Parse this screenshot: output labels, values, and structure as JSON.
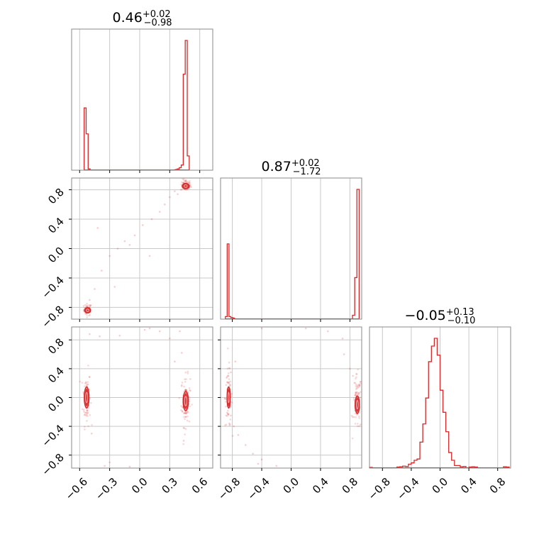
{
  "chart_data": {
    "type": "corner",
    "color": "#d62728",
    "params": [
      {
        "median": "0.46",
        "plus": "+0.02",
        "minus": "−0.98",
        "ticks": [
          -0.6,
          -0.3,
          0.0,
          0.3,
          0.6
        ],
        "tick_labels": [
          "−0.6",
          "−0.3",
          "0.0",
          "0.3",
          "0.6"
        ],
        "range": [
          -0.68,
          0.73
        ]
      },
      {
        "median": "0.87",
        "plus": "+0.02",
        "minus": "−1.72",
        "ticks": [
          -0.8,
          -0.4,
          0.0,
          0.4,
          0.8
        ],
        "tick_labels": [
          "−0.8",
          "−0.4",
          "0.0",
          "0.4",
          "0.8"
        ],
        "range": [
          -0.96,
          0.96
        ]
      },
      {
        "median": "−0.05",
        "plus": "+0.13",
        "minus": "−0.10",
        "ticks": [
          -0.8,
          -0.4,
          0.0,
          0.4,
          0.8
        ],
        "tick_labels": [
          "−0.8",
          "−0.4",
          "0.0",
          "0.4",
          "0.8"
        ],
        "range": [
          -0.98,
          0.98
        ]
      }
    ],
    "histograms": [
      {
        "param": 0,
        "bins": [
          {
            "x0": -0.555,
            "x1": -0.535,
            "v": 0.48
          },
          {
            "x0": -0.535,
            "x1": -0.515,
            "v": 0.28
          },
          {
            "x0": -0.515,
            "x1": -0.495,
            "v": 0.01
          },
          {
            "x0": 0.355,
            "x1": 0.375,
            "v": 0.005
          },
          {
            "x0": 0.375,
            "x1": 0.395,
            "v": 0.01
          },
          {
            "x0": 0.395,
            "x1": 0.415,
            "v": 0.02
          },
          {
            "x0": 0.415,
            "x1": 0.435,
            "v": 0.04
          },
          {
            "x0": 0.435,
            "x1": 0.455,
            "v": 0.74
          },
          {
            "x0": 0.455,
            "x1": 0.475,
            "v": 1.0
          },
          {
            "x0": 0.475,
            "x1": 0.495,
            "v": 0.11
          }
        ]
      },
      {
        "param": 1,
        "bins": [
          {
            "x0": -0.895,
            "x1": -0.87,
            "v": 0.02
          },
          {
            "x0": -0.87,
            "x1": -0.845,
            "v": 0.58
          },
          {
            "x0": -0.845,
            "x1": -0.82,
            "v": 0.02
          },
          {
            "x0": -0.82,
            "x1": -0.795,
            "v": 0.012
          },
          {
            "x0": -0.795,
            "x1": -0.77,
            "v": 0.008
          },
          {
            "x0": 0.835,
            "x1": 0.865,
            "v": 0.03
          },
          {
            "x0": 0.865,
            "x1": 0.895,
            "v": 0.32
          },
          {
            "x0": 0.895,
            "x1": 0.925,
            "v": 1.0
          }
        ]
      },
      {
        "param": 2,
        "bins": [
          {
            "x0": -0.98,
            "x1": -0.94,
            "v": 0.005
          },
          {
            "x0": -0.6,
            "x1": -0.56,
            "v": 0.008
          },
          {
            "x0": -0.56,
            "x1": -0.52,
            "v": 0.01
          },
          {
            "x0": -0.52,
            "x1": -0.48,
            "v": 0.015
          },
          {
            "x0": -0.48,
            "x1": -0.44,
            "v": 0.012
          },
          {
            "x0": -0.44,
            "x1": -0.4,
            "v": 0.03
          },
          {
            "x0": -0.4,
            "x1": -0.36,
            "v": 0.04
          },
          {
            "x0": -0.36,
            "x1": -0.32,
            "v": 0.06
          },
          {
            "x0": -0.32,
            "x1": -0.28,
            "v": 0.07
          },
          {
            "x0": -0.28,
            "x1": -0.24,
            "v": 0.2
          },
          {
            "x0": -0.24,
            "x1": -0.2,
            "v": 0.34
          },
          {
            "x0": -0.2,
            "x1": -0.16,
            "v": 0.54
          },
          {
            "x0": -0.16,
            "x1": -0.12,
            "v": 0.82
          },
          {
            "x0": -0.12,
            "x1": -0.08,
            "v": 0.94
          },
          {
            "x0": -0.08,
            "x1": -0.04,
            "v": 1.0
          },
          {
            "x0": -0.04,
            "x1": 0.0,
            "v": 0.87
          },
          {
            "x0": 0.0,
            "x1": 0.04,
            "v": 0.6
          },
          {
            "x0": 0.04,
            "x1": 0.08,
            "v": 0.43
          },
          {
            "x0": 0.08,
            "x1": 0.12,
            "v": 0.28
          },
          {
            "x0": 0.12,
            "x1": 0.16,
            "v": 0.12
          },
          {
            "x0": 0.16,
            "x1": 0.2,
            "v": 0.06
          },
          {
            "x0": 0.2,
            "x1": 0.24,
            "v": 0.02
          },
          {
            "x0": 0.24,
            "x1": 0.28,
            "v": 0.02
          },
          {
            "x0": 0.28,
            "x1": 0.32,
            "v": 0.01
          },
          {
            "x0": 0.32,
            "x1": 0.36,
            "v": 0.012
          },
          {
            "x0": 0.4,
            "x1": 0.44,
            "v": 0.008
          },
          {
            "x0": 0.44,
            "x1": 0.48,
            "v": 0.01
          },
          {
            "x0": 0.48,
            "x1": 0.52,
            "v": 0.008
          },
          {
            "x0": 0.88,
            "x1": 0.92,
            "v": 0.01
          },
          {
            "x0": 0.92,
            "x1": 0.96,
            "v": 0.008
          }
        ]
      }
    ],
    "scatter_panels": [
      {
        "xparam": 0,
        "yparam": 1,
        "modes": [
          {
            "x": -0.52,
            "y": -0.83,
            "sx": 0.012,
            "sy": 0.025,
            "n": 55
          },
          {
            "x": 0.46,
            "y": 0.86,
            "sx": 0.016,
            "sy": 0.025,
            "n": 65
          }
        ],
        "contours": [
          {
            "x": -0.52,
            "y": -0.84,
            "rx": 0.025,
            "ry": 0.03
          },
          {
            "x": 0.46,
            "y": 0.85,
            "rx": 0.03,
            "ry": 0.03
          }
        ],
        "bridge": [
          [
            -0.5,
            -0.7
          ],
          [
            -0.45,
            -0.55
          ],
          [
            -0.38,
            -0.3
          ],
          [
            -0.3,
            -0.1
          ],
          [
            -0.22,
            0.0
          ],
          [
            -0.1,
            0.05
          ],
          [
            -0.05,
            0.18
          ],
          [
            0.03,
            0.32
          ],
          [
            0.12,
            0.4
          ],
          [
            0.2,
            0.5
          ],
          [
            0.25,
            0.6
          ],
          [
            0.3,
            0.7
          ],
          [
            0.35,
            0.78
          ],
          [
            -0.42,
            0.28
          ],
          [
            -0.25,
            -0.52
          ],
          [
            0.1,
            -0.1
          ],
          [
            -0.15,
            0.1
          ],
          [
            0.38,
            0.74
          ]
        ]
      },
      {
        "xparam": 0,
        "yparam": 2,
        "modes": [
          {
            "x": -0.53,
            "y": 0.0,
            "sx": 0.012,
            "sy": 0.12,
            "n": 80
          },
          {
            "x": 0.46,
            "y": -0.05,
            "sx": 0.014,
            "sy": 0.11,
            "n": 90
          }
        ],
        "contours": [
          {
            "x": -0.53,
            "y": 0.0,
            "rx": 0.02,
            "ry": 0.12
          },
          {
            "x": 0.46,
            "y": -0.05,
            "rx": 0.022,
            "ry": 0.11
          }
        ],
        "bridge": [
          [
            -0.5,
            0.88
          ],
          [
            -0.4,
            0.85
          ],
          [
            -0.2,
            0.86
          ],
          [
            0.05,
            0.94
          ],
          [
            0.1,
            0.96
          ],
          [
            0.2,
            0.92
          ],
          [
            0.3,
            0.82
          ],
          [
            -0.3,
            -0.9
          ],
          [
            -0.1,
            -0.96
          ],
          [
            0.35,
            0.5
          ],
          [
            0.42,
            0.62
          ],
          [
            0.44,
            -0.6
          ],
          [
            -0.48,
            -0.5
          ],
          [
            0.4,
            0.92
          ],
          [
            -0.35,
            -0.95
          ]
        ]
      },
      {
        "xparam": 1,
        "yparam": 2,
        "modes": [
          {
            "x": -0.85,
            "y": 0.0,
            "sx": 0.015,
            "sy": 0.13,
            "n": 80
          },
          {
            "x": 0.9,
            "y": -0.08,
            "sx": 0.018,
            "sy": 0.12,
            "n": 90
          }
        ],
        "contours": [
          {
            "x": -0.85,
            "y": 0.0,
            "rx": 0.018,
            "ry": 0.12
          },
          {
            "x": 0.9,
            "y": -0.1,
            "rx": 0.025,
            "ry": 0.1
          }
        ],
        "bridge": [
          [
            -0.82,
            -0.25
          ],
          [
            -0.78,
            -0.4
          ],
          [
            -0.72,
            -0.52
          ],
          [
            -0.62,
            -0.66
          ],
          [
            -0.52,
            -0.78
          ],
          [
            -0.4,
            -0.86
          ],
          [
            -0.2,
            -0.95
          ],
          [
            -0.45,
            -0.92
          ],
          [
            0.0,
            0.98
          ],
          [
            -0.4,
            0.96
          ],
          [
            0.2,
            0.96
          ],
          [
            0.5,
            0.92
          ],
          [
            0.72,
            0.6
          ],
          [
            0.8,
            0.4
          ],
          [
            0.84,
            0.3
          ],
          [
            -0.76,
            0.5
          ],
          [
            0.7,
            0.82
          ],
          [
            -0.82,
            0.35
          ]
        ]
      }
    ]
  }
}
